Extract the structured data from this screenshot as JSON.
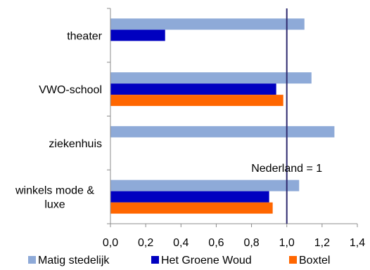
{
  "chart_data": {
    "type": "bar",
    "orientation": "horizontal",
    "categories": [
      "theater",
      "VWO-school",
      "ziekenhuis",
      "winkels mode & luxe"
    ],
    "series": [
      {
        "name": "Matig stedelijk",
        "color": "#8eaad8",
        "values": [
          1.1,
          1.14,
          1.27,
          1.07
        ]
      },
      {
        "name": "Het Groene Woud",
        "color": "#0000c0",
        "values": [
          0.31,
          0.94,
          null,
          0.9
        ]
      },
      {
        "name": "Boxtel",
        "color": "#ff6600",
        "values": [
          null,
          0.98,
          null,
          0.92
        ]
      }
    ],
    "xlim": [
      0,
      1.4
    ],
    "xticks": [
      "0,0",
      "0,2",
      "0,4",
      "0,6",
      "0,8",
      "1,0",
      "1,2",
      "1,4"
    ],
    "xtick_values": [
      0,
      0.2,
      0.4,
      0.6,
      0.8,
      1.0,
      1.2,
      1.4
    ],
    "reference_line": {
      "value": 1.0,
      "label": "Nederland = 1",
      "color": "#2e2a6e"
    },
    "grid": false,
    "legend_position": "bottom"
  }
}
